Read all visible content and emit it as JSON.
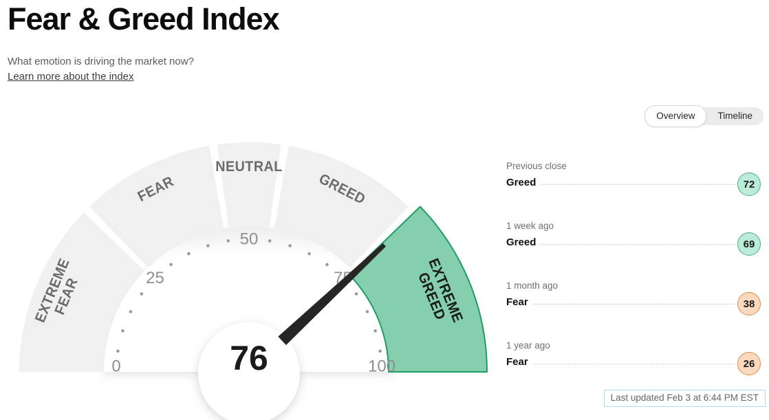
{
  "header": {
    "title": "Fear & Greed Index",
    "subtitle": "What emotion is driving the market now?",
    "link_label": "Learn more about the index"
  },
  "tabs": {
    "overview": "Overview",
    "timeline": "Timeline",
    "selected": "Overview"
  },
  "chart_data": {
    "type": "gauge",
    "title": "Fear & Greed Index",
    "value": 76,
    "value_sentiment": "Extreme Greed",
    "range": [
      0,
      100
    ],
    "tick_labels": [
      0,
      25,
      50,
      75,
      100
    ],
    "minor_tick_step": 5,
    "segments": [
      {
        "label": "EXTREME FEAR",
        "lines": [
          "EXTREME",
          "FEAR"
        ],
        "from": 0,
        "to": 25,
        "active": false
      },
      {
        "label": "FEAR",
        "lines": [
          "FEAR"
        ],
        "from": 25,
        "to": 45,
        "active": false
      },
      {
        "label": "NEUTRAL",
        "lines": [
          "NEUTRAL"
        ],
        "from": 45,
        "to": 55,
        "active": false
      },
      {
        "label": "GREED",
        "lines": [
          "GREED"
        ],
        "from": 55,
        "to": 75,
        "active": false
      },
      {
        "label": "EXTREME GREED",
        "lines": [
          "EXTREME",
          "GREED"
        ],
        "from": 75,
        "to": 100,
        "active": true
      }
    ],
    "history": [
      {
        "period": "Previous close",
        "label": "Greed",
        "value": "72",
        "sentiment": "greed"
      },
      {
        "period": "1 week ago",
        "label": "Greed",
        "value": "69",
        "sentiment": "greed"
      },
      {
        "period": "1 month ago",
        "label": "Fear",
        "value": "38",
        "sentiment": "fear"
      },
      {
        "period": "1 year ago",
        "label": "Fear",
        "value": "26",
        "sentiment": "fear"
      }
    ],
    "colors": {
      "active_segment_fill": "#85CFAE",
      "active_segment_stroke": "#1E9C63",
      "active_segment_label": "#1A1A1A",
      "segment_fill": "#F1F0F0",
      "segment_label": "#6B6B6B",
      "tick_dot": "#9A9A9A",
      "tick_number": "#8F8F8F",
      "needle": "#262626",
      "center_value": "#1B1B1B",
      "greed_badge_fill": "#BCEBD7",
      "greed_badge_stroke": "#48B18B",
      "fear_badge_fill": "#FBD9BE",
      "fear_badge_stroke": "#DE8C49",
      "last_updated_border": "#A8DFF0"
    }
  },
  "footer": {
    "last_updated": "Last updated Feb 3 at 6:44 PM EST"
  }
}
